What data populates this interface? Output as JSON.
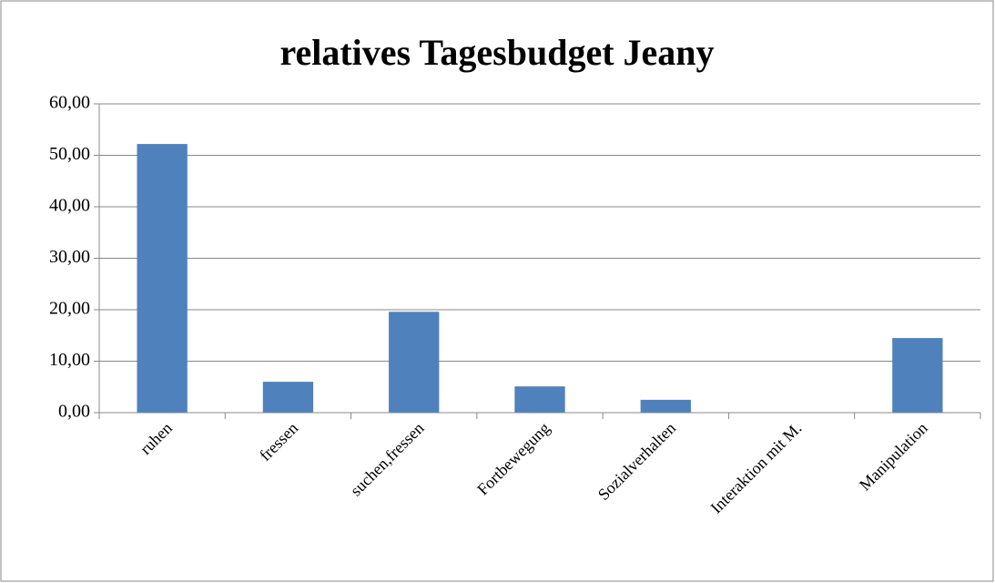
{
  "chart_data": {
    "type": "bar",
    "title": "relatives Tagesbudget Jeany",
    "categories": [
      "ruhen",
      "fressen",
      "suchen,fressen",
      "Fortbewegung",
      "Sozialverhalten",
      "Interaktion mit M.",
      "Manipulation"
    ],
    "values": [
      52.2,
      6.0,
      19.6,
      5.1,
      2.5,
      0,
      14.5
    ],
    "color": "#4f81bd",
    "ylim": [
      0,
      60
    ],
    "yticks": [
      {
        "value": 0,
        "label": "0,00"
      },
      {
        "value": 10,
        "label": "10,00"
      },
      {
        "value": 20,
        "label": "20,00"
      },
      {
        "value": 30,
        "label": "30,00"
      },
      {
        "value": 40,
        "label": "40,00"
      },
      {
        "value": 50,
        "label": "50,00"
      },
      {
        "value": 60,
        "label": "60,00"
      }
    ],
    "grid": true
  }
}
